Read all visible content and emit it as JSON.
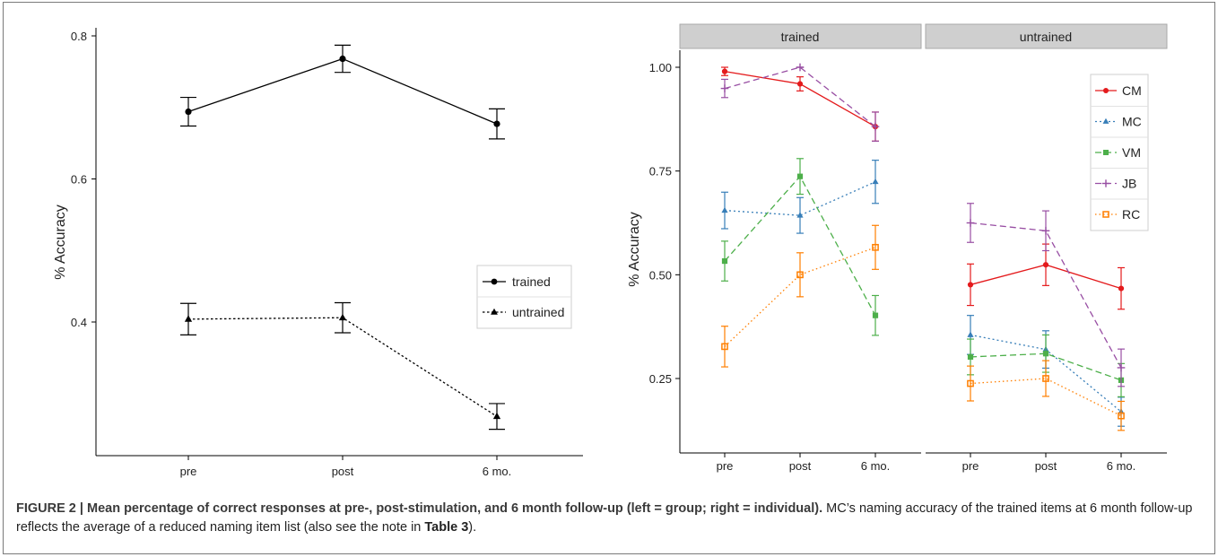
{
  "chart_data": [
    {
      "type": "line",
      "panel": "left",
      "ylabel": "% Accuracy",
      "xlabel": "",
      "categories": [
        "pre",
        "post",
        "6 mo."
      ],
      "y_ticks": [
        "0.4",
        "0.6",
        "0.8"
      ],
      "ylim": [
        0.23,
        0.81
      ],
      "legend_position": "right",
      "grid": false,
      "series": [
        {
          "name": "trained",
          "style": "solid",
          "marker": "circle",
          "values": [
            0.694,
            0.768,
            0.677
          ],
          "errors": [
            0.02,
            0.019,
            0.021
          ]
        },
        {
          "name": "untrained",
          "style": "dotted",
          "marker": "triangle",
          "values": [
            0.404,
            0.406,
            0.268
          ],
          "errors": [
            0.022,
            0.021,
            0.018
          ]
        }
      ]
    },
    {
      "type": "line",
      "panel": "right",
      "ylabel": "% Accuracy",
      "xlabel": "",
      "facets": [
        "trained",
        "untrained"
      ],
      "categories": [
        "pre",
        "post",
        "6 mo."
      ],
      "y_ticks": [
        "0.25",
        "0.50",
        "0.75",
        "1.00"
      ],
      "ylim": [
        0.11,
        1.04
      ],
      "legend_position": "top-right",
      "grid": false,
      "series": [
        {
          "name": "CM",
          "color": "#e41a1c",
          "dash": "",
          "marker": "circle",
          "trained": [
            0.99,
            0.96,
            0.857
          ],
          "trained_err": [
            0.01,
            0.017,
            0.035
          ],
          "untrained": [
            0.476,
            0.524,
            0.467
          ],
          "untrained_err": [
            0.05,
            0.05,
            0.05
          ]
        },
        {
          "name": "MC",
          "color": "#377eb8",
          "dash": "2,3",
          "marker": "triangle",
          "trained": [
            0.655,
            0.643,
            0.724
          ],
          "trained_err": [
            0.044,
            0.043,
            0.052
          ],
          "untrained": [
            0.355,
            0.32,
            0.17
          ],
          "untrained_err": [
            0.047,
            0.045,
            0.035
          ]
        },
        {
          "name": "VM",
          "color": "#4daf4a",
          "dash": "7,4",
          "marker": "square",
          "trained": [
            0.533,
            0.737,
            0.402
          ],
          "trained_err": [
            0.048,
            0.043,
            0.048
          ],
          "untrained": [
            0.302,
            0.31,
            0.246
          ],
          "untrained_err": [
            0.043,
            0.045,
            0.04
          ]
        },
        {
          "name": "JB",
          "color": "#984ea3",
          "dash": "7,4",
          "marker": "plus",
          "trained": [
            0.949,
            1.0,
            0.857
          ],
          "trained_err": [
            0.022,
            0.0,
            0.035
          ],
          "untrained": [
            0.625,
            0.606,
            0.276
          ],
          "untrained_err": [
            0.047,
            0.048,
            0.045
          ]
        },
        {
          "name": "RC",
          "color": "#ff7f00",
          "dash": "1.5,3",
          "marker": "square-open",
          "trained": [
            0.327,
            0.5,
            0.566
          ],
          "trained_err": [
            0.049,
            0.053,
            0.053
          ],
          "untrained": [
            0.238,
            0.25,
            0.16
          ],
          "untrained_err": [
            0.042,
            0.043,
            0.035
          ]
        }
      ]
    }
  ],
  "caption": {
    "lead": "FIGURE 2 | Mean percentage of correct responses at pre-, post-stimulation, and 6 month follow-up (left = group; right = individual).",
    "body_before": " MC’s naming accuracy of the trained items at 6 month follow-up reflects the average of a reduced naming item list (also see the note in ",
    "table_ref": "Table 3",
    "body_after": ")."
  }
}
